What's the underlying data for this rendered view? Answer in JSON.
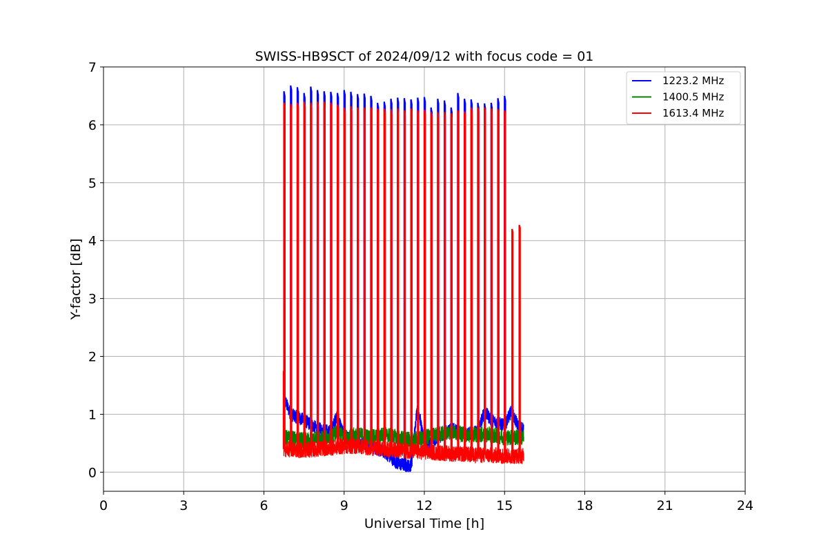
{
  "chart_data": {
    "type": "line",
    "title": "SWISS-HB9SCT of 2024/09/12 with focus code = 01",
    "xlabel": "Universal Time [h]",
    "ylabel": "Y-factor [dB]",
    "xlim": [
      0,
      24
    ],
    "ylim": [
      -0.33,
      7
    ],
    "xticks": [
      0,
      3,
      6,
      9,
      12,
      15,
      18,
      21,
      24
    ],
    "yticks": [
      0,
      1,
      2,
      3,
      4,
      5,
      6,
      7
    ],
    "grid": true,
    "legend_position": "top-right",
    "colors": {
      "blue": "#0000ff",
      "green": "#008000",
      "red": "#ff0000"
    },
    "data_start_h": 6.73,
    "data_end_h": 15.72,
    "calibration_pulse_times_h": [
      6.75,
      7.0,
      7.25,
      7.5,
      7.75,
      8.0,
      8.25,
      8.5,
      8.75,
      9.0,
      9.25,
      9.5,
      9.75,
      10.0,
      10.25,
      10.5,
      10.75,
      11.0,
      11.25,
      11.5,
      11.75,
      12.0,
      12.25,
      12.5,
      12.75,
      13.0,
      13.25,
      13.5,
      13.75,
      14.0,
      14.25,
      14.5,
      14.75,
      15.0
    ],
    "series": [
      {
        "name": "1223.2 MHz",
        "color": "#0000ff",
        "pulse_peaks": [
          6.58,
          6.68,
          6.65,
          6.55,
          6.66,
          6.6,
          6.58,
          6.57,
          6.55,
          6.6,
          6.57,
          6.53,
          6.54,
          6.5,
          6.38,
          6.4,
          6.45,
          6.47,
          6.46,
          6.44,
          6.47,
          6.48,
          6.3,
          6.45,
          6.42,
          6.3,
          6.55,
          6.45,
          6.44,
          6.38,
          6.37,
          6.38,
          6.46,
          6.5
        ],
        "baseline_time_h": [
          6.73,
          7.0,
          7.5,
          8.0,
          8.5,
          8.75,
          9.0,
          9.5,
          10.0,
          10.5,
          11.0,
          11.5,
          11.75,
          12.0,
          12.5,
          13.0,
          13.5,
          14.0,
          14.25,
          14.5,
          15.0,
          15.25,
          15.5,
          15.72
        ],
        "baseline_value_db": [
          1.3,
          1.0,
          0.9,
          0.75,
          0.7,
          1.0,
          0.6,
          0.55,
          0.45,
          0.35,
          0.15,
          0.1,
          1.2,
          0.45,
          0.6,
          0.75,
          0.65,
          0.7,
          1.05,
          0.9,
          0.8,
          1.05,
          0.8,
          0.75
        ]
      },
      {
        "name": "1400.5 MHz",
        "color": "#008000",
        "pulse_peaks": [],
        "baseline_time_h": [
          6.73,
          7.5,
          8.5,
          8.75,
          9.0,
          9.5,
          10.0,
          10.5,
          11.0,
          11.5,
          12.0,
          12.5,
          13.0,
          13.5,
          14.0,
          14.5,
          15.0,
          15.72
        ],
        "baseline_value_db": [
          0.6,
          0.55,
          0.6,
          0.7,
          0.6,
          0.65,
          0.6,
          0.65,
          0.6,
          0.55,
          0.6,
          0.65,
          0.7,
          0.65,
          0.65,
          0.65,
          0.6,
          0.6
        ]
      },
      {
        "name": "1613.4 MHz",
        "color": "#ff0000",
        "pulse_peaks": [
          6.38,
          6.36,
          6.38,
          6.4,
          6.38,
          6.4,
          6.4,
          6.38,
          6.35,
          6.3,
          6.32,
          6.3,
          6.3,
          6.3,
          6.28,
          6.28,
          6.27,
          6.28,
          6.25,
          6.28,
          6.25,
          6.26,
          6.22,
          6.22,
          6.22,
          6.2,
          6.25,
          6.23,
          6.3,
          6.3,
          6.3,
          6.28,
          6.27,
          6.25
        ],
        "late_pulses": [
          {
            "t": 15.28,
            "peak": 4.2
          },
          {
            "t": 15.55,
            "peak": 4.27
          }
        ],
        "baseline_time_h": [
          6.73,
          7.5,
          8.5,
          9.0,
          9.5,
          10.0,
          11.0,
          12.0,
          13.0,
          14.0,
          15.0,
          15.72
        ],
        "baseline_value_db": [
          0.4,
          0.38,
          0.42,
          0.45,
          0.45,
          0.42,
          0.38,
          0.35,
          0.32,
          0.3,
          0.28,
          0.28
        ]
      }
    ]
  }
}
